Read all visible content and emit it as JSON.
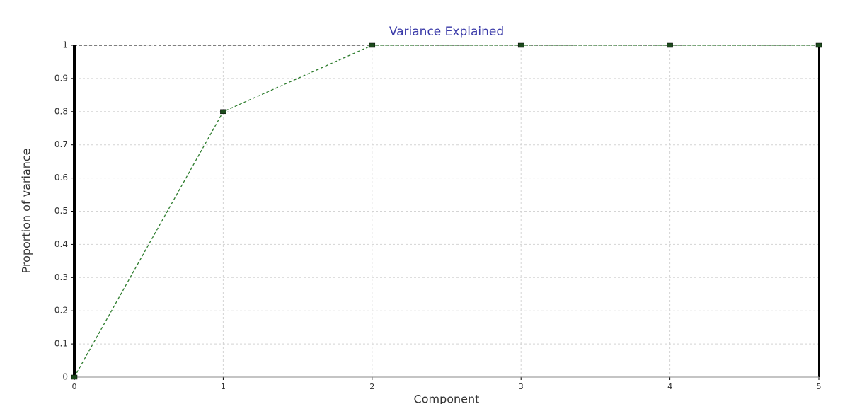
{
  "chart_data": {
    "type": "line",
    "title": "Variance Explained",
    "x_label": "Component",
    "y_label": "Proportion of variance",
    "x": [
      0,
      1,
      2,
      3,
      4,
      5
    ],
    "values": [
      0,
      0.8,
      1,
      1,
      1,
      1
    ],
    "color": "#2e7d2e",
    "xlim": [
      0,
      5
    ],
    "ylim": [
      0,
      1
    ],
    "xticks": [
      0,
      1,
      2,
      3,
      4,
      5
    ],
    "yticks": [
      0,
      0.1,
      0.2,
      0.3,
      0.4,
      0.5,
      0.6,
      0.7,
      0.8,
      0.9,
      1
    ],
    "grid": true
  }
}
